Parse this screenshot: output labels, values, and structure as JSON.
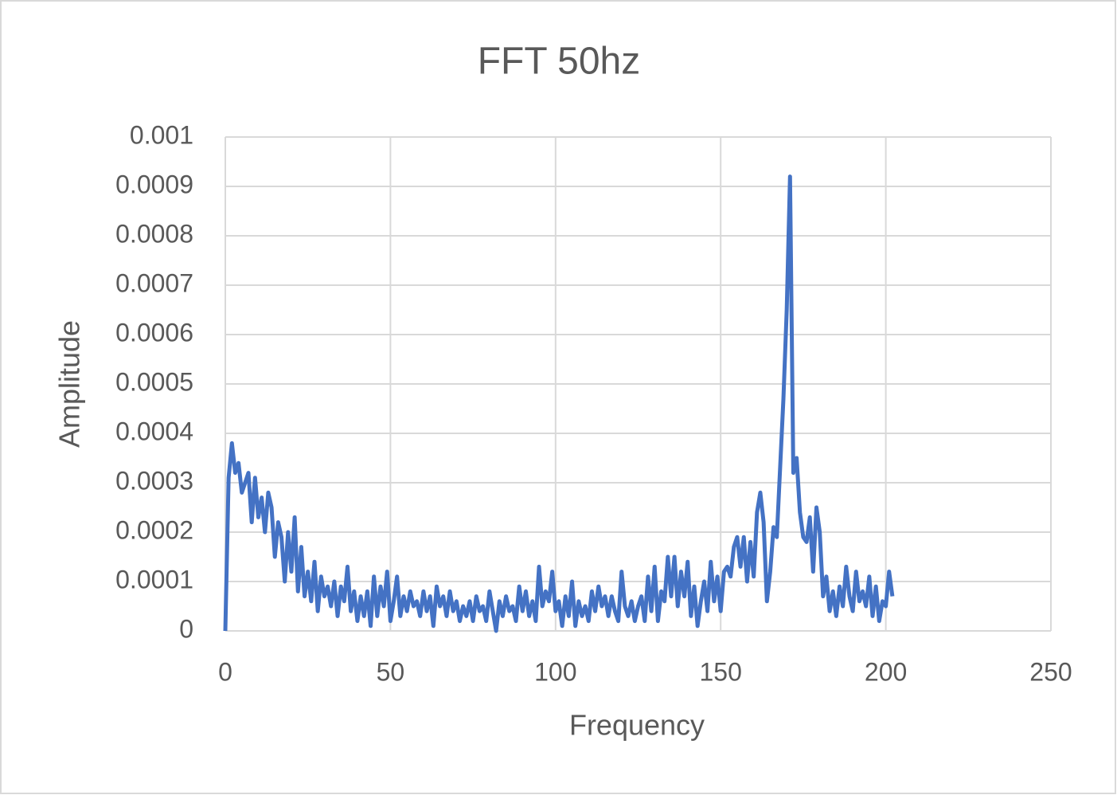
{
  "chart_data": {
    "type": "line",
    "title": "FFT 50hz",
    "x_label": "Frequency",
    "y_label": "Amplitude",
    "x": [
      0,
      1,
      2,
      3,
      4,
      5,
      6,
      7,
      8,
      9,
      10,
      11,
      12,
      13,
      14,
      15,
      16,
      17,
      18,
      19,
      20,
      21,
      22,
      23,
      24,
      25,
      26,
      27,
      28,
      29,
      30,
      31,
      32,
      33,
      34,
      35,
      36,
      37,
      38,
      39,
      40,
      41,
      42,
      43,
      44,
      45,
      46,
      47,
      48,
      49,
      50,
      51,
      52,
      53,
      54,
      55,
      56,
      57,
      58,
      59,
      60,
      61,
      62,
      63,
      64,
      65,
      66,
      67,
      68,
      69,
      70,
      71,
      72,
      73,
      74,
      75,
      76,
      77,
      78,
      79,
      80,
      81,
      82,
      83,
      84,
      85,
      86,
      87,
      88,
      89,
      90,
      91,
      92,
      93,
      94,
      95,
      96,
      97,
      98,
      99,
      100,
      101,
      102,
      103,
      104,
      105,
      106,
      107,
      108,
      109,
      110,
      111,
      112,
      113,
      114,
      115,
      116,
      117,
      118,
      119,
      120,
      121,
      122,
      123,
      124,
      125,
      126,
      127,
      128,
      129,
      130,
      131,
      132,
      133,
      134,
      135,
      136,
      137,
      138,
      139,
      140,
      141,
      142,
      143,
      144,
      145,
      146,
      147,
      148,
      149,
      150,
      151,
      152,
      153,
      154,
      155,
      156,
      157,
      158,
      159,
      160,
      161,
      162,
      163,
      164,
      165,
      166,
      167,
      168,
      169,
      170,
      171,
      172,
      173,
      174,
      175,
      176,
      177,
      178,
      179,
      180,
      181,
      182,
      183,
      184,
      185,
      186,
      187,
      188,
      189,
      190,
      191,
      192,
      193,
      194,
      195,
      196,
      197,
      198,
      199,
      200,
      201,
      202
    ],
    "series": [
      {
        "color": "#4472c4",
        "values": [
          0,
          0.00031,
          0.00038,
          0.00032,
          0.00034,
          0.00028,
          0.0003,
          0.00032,
          0.00022,
          0.00031,
          0.00023,
          0.00027,
          0.0002,
          0.00028,
          0.00025,
          0.00015,
          0.00022,
          0.00019,
          0.0001,
          0.0002,
          0.00012,
          0.00023,
          8e-05,
          0.00017,
          7e-05,
          0.00012,
          6e-05,
          0.00014,
          4e-05,
          0.00011,
          7e-05,
          9e-05,
          5e-05,
          0.0001,
          3e-05,
          9e-05,
          6e-05,
          0.00013,
          4e-05,
          8e-05,
          2e-05,
          7e-05,
          3e-05,
          8e-05,
          1e-05,
          0.00011,
          3e-05,
          9e-05,
          5e-05,
          0.00012,
          2e-05,
          6e-05,
          0.00011,
          3e-05,
          7e-05,
          4e-05,
          8e-05,
          5e-05,
          6e-05,
          3e-05,
          8e-05,
          4e-05,
          7e-05,
          1e-05,
          9e-05,
          5e-05,
          7e-05,
          3e-05,
          8e-05,
          4e-05,
          6e-05,
          2e-05,
          5e-05,
          3e-05,
          6e-05,
          2e-05,
          7e-05,
          4e-05,
          5e-05,
          2e-05,
          8e-05,
          4e-05,
          0,
          6e-05,
          3e-05,
          7e-05,
          4e-05,
          5e-05,
          2e-05,
          9e-05,
          4e-05,
          8e-05,
          3e-05,
          6e-05,
          2e-05,
          0.00013,
          5e-05,
          8e-05,
          6e-05,
          0.00012,
          4e-05,
          6e-05,
          1e-05,
          7e-05,
          3e-05,
          0.0001,
          1e-05,
          6e-05,
          3e-05,
          5e-05,
          2e-05,
          8e-05,
          4e-05,
          9e-05,
          5e-05,
          7e-05,
          3e-05,
          7e-05,
          4e-05,
          2e-05,
          0.00012,
          5e-05,
          3e-05,
          6e-05,
          2e-05,
          5e-05,
          7e-05,
          2e-05,
          0.00011,
          4e-05,
          0.00013,
          2e-05,
          8e-05,
          6e-05,
          0.00015,
          7e-05,
          0.00015,
          5e-05,
          0.00012,
          7e-05,
          0.00014,
          3e-05,
          9e-05,
          1e-05,
          6e-05,
          0.0001,
          4e-05,
          0.00014,
          6e-05,
          0.00011,
          4e-05,
          0.00012,
          0.00013,
          0.00011,
          0.00017,
          0.00019,
          0.00013,
          0.00019,
          0.0001,
          0.00018,
          0.00011,
          0.00024,
          0.00028,
          0.00022,
          6e-05,
          0.00012,
          0.00021,
          0.00019,
          0.00033,
          0.00047,
          0.00065,
          0.00092,
          0.00032,
          0.00035,
          0.00024,
          0.00019,
          0.00018,
          0.00023,
          0.00012,
          0.00025,
          0.0002,
          7e-05,
          0.00011,
          4e-05,
          8e-05,
          3e-05,
          9e-05,
          5e-05,
          0.00013,
          7e-05,
          4e-05,
          0.00012,
          6e-05,
          8e-05,
          5e-05,
          0.00011,
          3e-05,
          9e-05,
          2e-05,
          6e-05,
          5e-05,
          0.00012,
          7e-05
        ]
      }
    ],
    "xlim": [
      0,
      250
    ],
    "xticks": [
      0,
      50,
      100,
      150,
      200,
      250
    ],
    "ylim": [
      0,
      0.001
    ],
    "yticks": [
      0,
      0.0001,
      0.0002,
      0.0003,
      0.0004,
      0.0005,
      0.0006,
      0.0007,
      0.0008,
      0.0009,
      0.001
    ],
    "grid": true
  }
}
